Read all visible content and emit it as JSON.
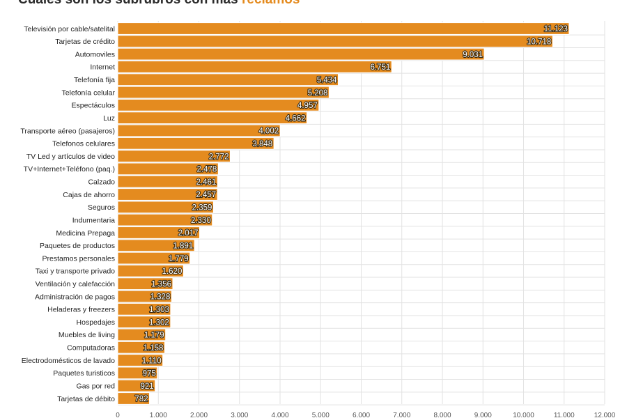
{
  "title": {
    "prefix": "Cuáles son los subrubros con más",
    "highlight": "reclamos"
  },
  "colors": {
    "bar": "#e48b1f",
    "bar_border": "#ffffff",
    "highlight": "#e48b1f"
  },
  "chart_data": {
    "type": "bar",
    "orientation": "horizontal",
    "categories": [
      "Televisión por cable/satelital",
      "Tarjetas de crédito",
      "Automoviles",
      "Internet",
      "Telefonía fija",
      "Telefonía celular",
      "Espectáculos",
      "Luz",
      "Transporte aéreo (pasajeros)",
      "Telefonos celulares",
      "TV Led y artículos de video",
      "TV+Internet+Teléfono (paq.)",
      "Calzado",
      "Cajas de ahorro",
      "Seguros",
      "Indumentaria",
      "Medicina Prepaga",
      "Paquetes de productos",
      "Prestamos personales",
      "Taxi y transporte privado",
      "Ventilación y calefacción",
      "Administración de pagos",
      "Heladeras y freezers",
      "Hospedajes",
      "Muebles de living",
      "Computadoras",
      "Electrodomésticos de lavado",
      "Paquetes turisticos",
      "Gas por red",
      "Tarjetas de débito"
    ],
    "values": [
      11123,
      10718,
      9031,
      6751,
      5434,
      5208,
      4957,
      4662,
      4002,
      3848,
      2772,
      2478,
      2461,
      2457,
      2359,
      2330,
      2017,
      1891,
      1779,
      1620,
      1356,
      1328,
      1303,
      1302,
      1179,
      1158,
      1110,
      975,
      921,
      782
    ],
    "value_labels": [
      "11.123",
      "10.718",
      "9.031",
      "6.751",
      "5.434",
      "5.208",
      "4.957",
      "4.662",
      "4.002",
      "3.848",
      "2.772",
      "2.478",
      "2.461",
      "2.457",
      "2.359",
      "2.330",
      "2.017",
      "1.891",
      "1.779",
      "1.620",
      "1.356",
      "1.328",
      "1.303",
      "1.302",
      "1.179",
      "1.158",
      "1.110",
      "975",
      "921",
      "782"
    ],
    "x_ticks": [
      0,
      1000,
      2000,
      3000,
      4000,
      5000,
      6000,
      7000,
      8000,
      9000,
      10000,
      11000,
      12000
    ],
    "x_tick_labels": [
      "0",
      "1.000",
      "2.000",
      "3.000",
      "4.000",
      "5.000",
      "6.000",
      "7.000",
      "8.000",
      "9.000",
      "10.000",
      "11.000",
      "12.000"
    ],
    "xlim": [
      0,
      12000
    ],
    "grid": true,
    "legend": "none"
  }
}
